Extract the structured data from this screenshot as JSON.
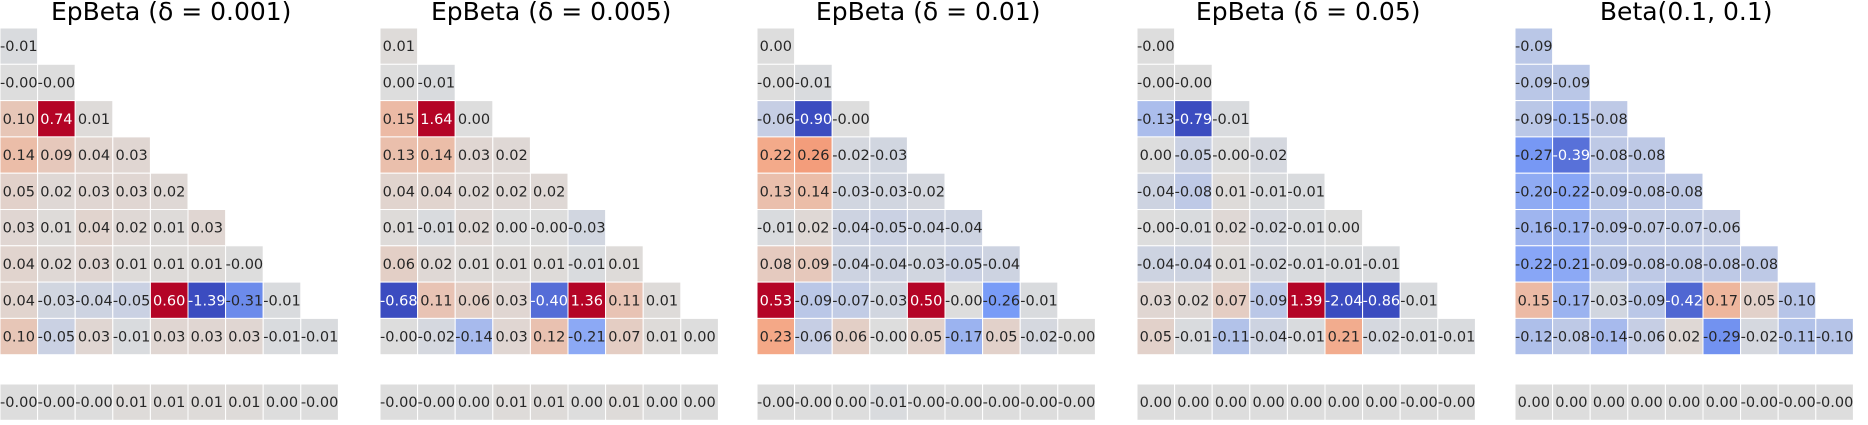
{
  "chart_data": [
    {
      "type": "heatmap",
      "title": "EpBeta (δ = 0.001)",
      "rows": [
        [
          -0.01
        ],
        [
          -0.0,
          -0.0
        ],
        [
          0.1,
          0.74,
          0.01
        ],
        [
          0.14,
          0.09,
          0.04,
          0.03
        ],
        [
          0.05,
          0.02,
          0.03,
          0.03,
          0.02
        ],
        [
          0.03,
          0.01,
          0.04,
          0.02,
          0.01,
          0.03
        ],
        [
          0.04,
          0.02,
          0.03,
          0.01,
          0.01,
          0.01,
          -0.0
        ],
        [
          0.04,
          -0.03,
          -0.04,
          -0.05,
          0.6,
          -1.39,
          -0.31,
          -0.01
        ],
        [
          0.1,
          -0.05,
          0.03,
          -0.01,
          0.03,
          0.03,
          0.03,
          -0.01,
          -0.01
        ]
      ],
      "bottom_row": [
        -0.0,
        -0.0,
        -0.0,
        0.01,
        0.01,
        0.01,
        0.01,
        0.0,
        -0.0
      ]
    },
    {
      "type": "heatmap",
      "title": "EpBeta (δ = 0.005)",
      "rows": [
        [
          0.01
        ],
        [
          0.0,
          -0.01
        ],
        [
          0.15,
          1.64,
          0.0
        ],
        [
          0.13,
          0.14,
          0.03,
          0.02
        ],
        [
          0.04,
          0.04,
          0.02,
          0.02,
          0.02
        ],
        [
          0.01,
          -0.01,
          0.02,
          0.0,
          -0.0,
          -0.03
        ],
        [
          0.06,
          0.02,
          0.01,
          0.01,
          0.01,
          -0.01,
          0.01
        ],
        [
          -0.68,
          0.11,
          0.06,
          0.03,
          -0.4,
          1.36,
          0.11,
          0.01
        ],
        [
          -0.0,
          -0.02,
          -0.14,
          0.03,
          0.12,
          -0.21,
          0.07,
          0.01,
          0.0
        ]
      ],
      "bottom_row": [
        -0.0,
        -0.0,
        0.0,
        0.01,
        0.01,
        0.0,
        0.01,
        0.0,
        0.0
      ]
    },
    {
      "type": "heatmap",
      "title": "EpBeta (δ = 0.01)",
      "rows": [
        [
          0.0
        ],
        [
          -0.0,
          -0.01
        ],
        [
          -0.06,
          -0.9,
          -0.0
        ],
        [
          0.22,
          0.26,
          -0.02,
          -0.03
        ],
        [
          0.13,
          0.14,
          -0.03,
          -0.03,
          -0.02
        ],
        [
          -0.01,
          0.02,
          -0.04,
          -0.05,
          -0.04,
          -0.04
        ],
        [
          0.08,
          0.09,
          -0.04,
          -0.04,
          -0.03,
          -0.05,
          -0.04
        ],
        [
          0.53,
          -0.09,
          -0.07,
          -0.03,
          0.5,
          -0.0,
          -0.26,
          -0.01
        ],
        [
          0.23,
          -0.06,
          0.06,
          -0.0,
          0.05,
          -0.17,
          0.05,
          -0.02,
          -0.0
        ]
      ],
      "bottom_row": [
        -0.0,
        -0.0,
        0.0,
        -0.01,
        -0.0,
        -0.0,
        -0.0,
        -0.0,
        -0.0
      ]
    },
    {
      "type": "heatmap",
      "title": "EpBeta (δ = 0.05)",
      "rows": [
        [
          -0.0
        ],
        [
          -0.0,
          -0.0
        ],
        [
          -0.13,
          -0.79,
          -0.01
        ],
        [
          0.0,
          -0.05,
          -0.0,
          -0.02
        ],
        [
          -0.04,
          -0.08,
          0.01,
          -0.01,
          -0.01
        ],
        [
          -0.0,
          -0.01,
          0.02,
          -0.02,
          -0.01,
          0.0
        ],
        [
          -0.04,
          -0.04,
          0.01,
          -0.02,
          -0.01,
          -0.01,
          -0.01
        ],
        [
          0.03,
          0.02,
          0.07,
          -0.09,
          1.39,
          -2.04,
          -0.86,
          -0.01
        ],
        [
          0.05,
          -0.01,
          -0.11,
          -0.04,
          -0.01,
          0.21,
          -0.02,
          -0.01,
          -0.01
        ]
      ],
      "bottom_row": [
        0.0,
        0.0,
        0.0,
        0.0,
        0.0,
        0.0,
        0.0,
        -0.0,
        -0.0
      ]
    },
    {
      "type": "heatmap",
      "title": "Beta(0.1, 0.1)",
      "rows": [
        [
          -0.09
        ],
        [
          -0.09,
          -0.09
        ],
        [
          -0.09,
          -0.15,
          -0.08
        ],
        [
          -0.27,
          -0.39,
          -0.08,
          -0.08
        ],
        [
          -0.2,
          -0.22,
          -0.09,
          -0.08,
          -0.08
        ],
        [
          -0.16,
          -0.17,
          -0.09,
          -0.07,
          -0.07,
          -0.06
        ],
        [
          -0.22,
          -0.21,
          -0.09,
          -0.08,
          -0.08,
          -0.08,
          -0.08
        ],
        [
          0.15,
          -0.17,
          -0.03,
          -0.09,
          -0.42,
          0.17,
          0.05,
          -0.1
        ],
        [
          -0.12,
          -0.08,
          -0.14,
          -0.06,
          0.02,
          -0.29,
          -0.02,
          -0.11,
          -0.1
        ]
      ],
      "bottom_row": [
        0.0,
        0.0,
        0.0,
        0.0,
        0.0,
        0.0,
        -0.0,
        -0.0,
        -0.0
      ]
    }
  ]
}
